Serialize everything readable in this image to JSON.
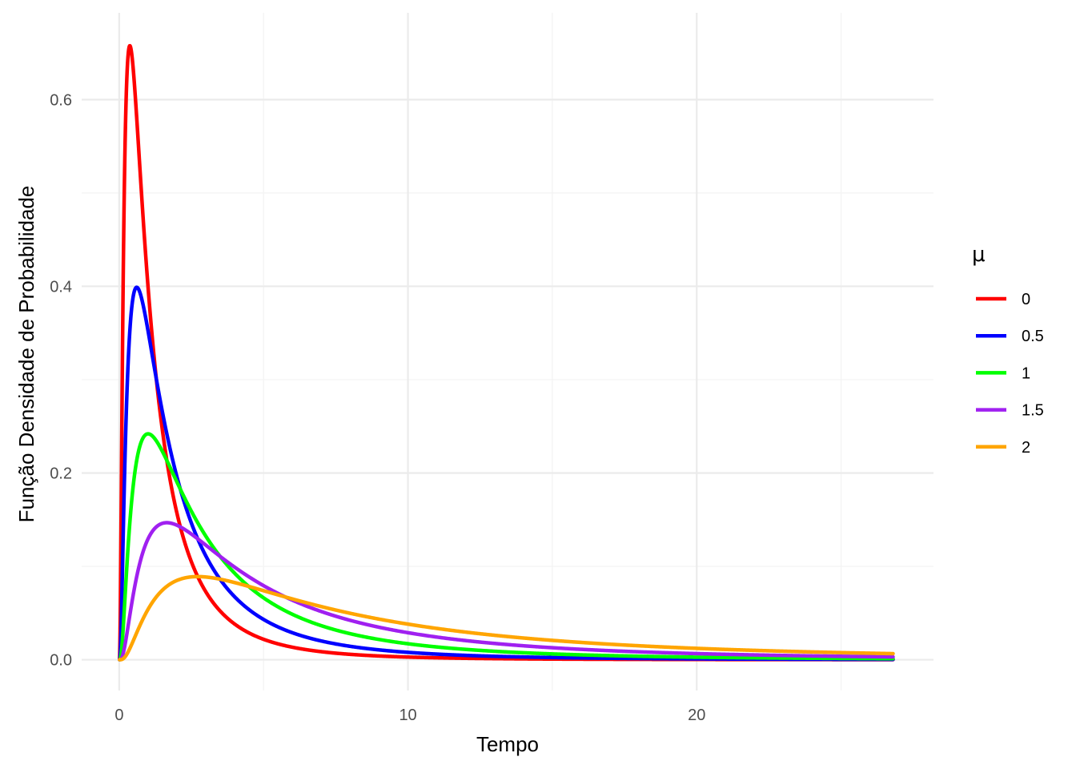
{
  "chart_data": {
    "type": "line",
    "title": "",
    "xlabel": "Tempo",
    "ylabel": "Função Densidade de Probabilidade",
    "xlim": [
      -1.3,
      28.2
    ],
    "ylim": [
      -0.033,
      0.693
    ],
    "x_ticks": [
      0,
      10,
      20
    ],
    "x_tick_labels": [
      "0",
      "10",
      "20"
    ],
    "y_ticks": [
      0.0,
      0.2,
      0.4,
      0.6
    ],
    "y_tick_labels": [
      "0.0",
      "0.2",
      "0.4",
      "0.6"
    ],
    "grid": true,
    "legend": {
      "title": "μ",
      "position": "right"
    },
    "x_range": [
      0.01,
      26.8
    ],
    "series": [
      {
        "name": "0",
        "color": "#FF0000",
        "mu": 0
      },
      {
        "name": "0.5",
        "color": "#0000FF",
        "mu": 0.5
      },
      {
        "name": "1",
        "color": "#00FF00",
        "mu": 1
      },
      {
        "name": "1.5",
        "color": "#A020F0",
        "mu": 1.5
      },
      {
        "name": "2",
        "color": "#FFA500",
        "mu": 2
      }
    ],
    "density": "lognormal",
    "sigma": 1
  }
}
